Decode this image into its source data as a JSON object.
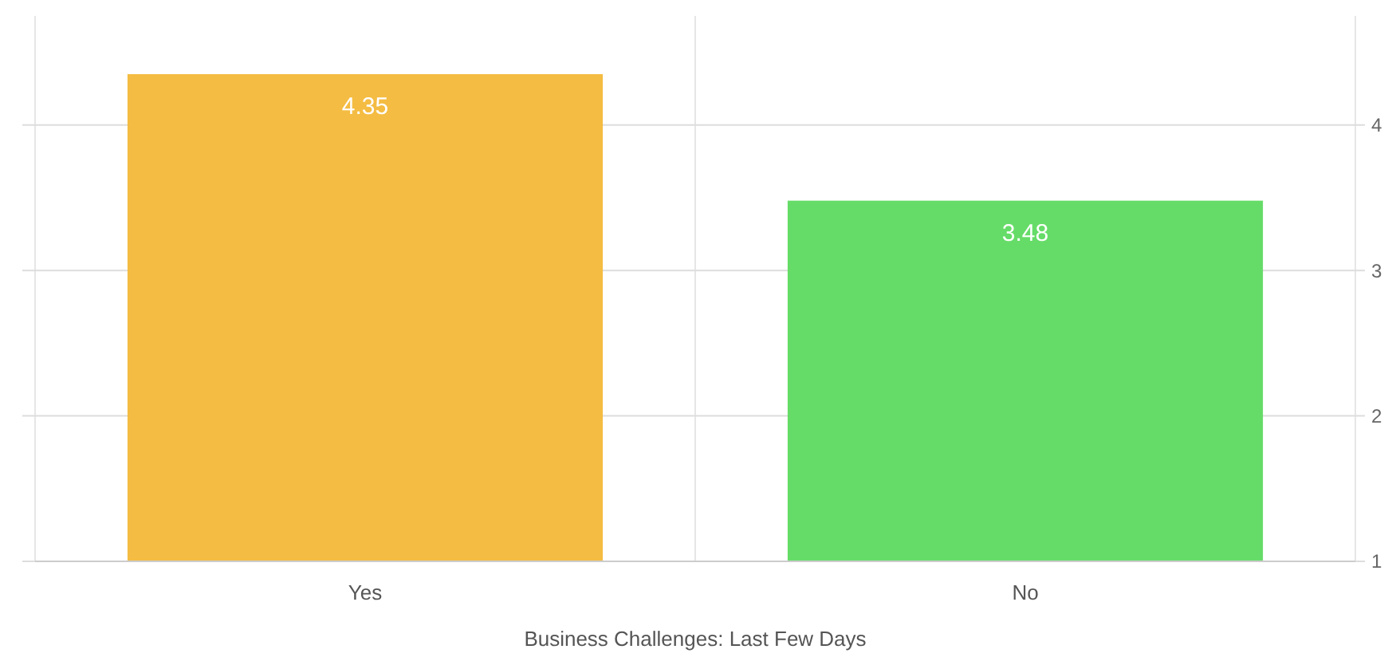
{
  "chart_data": {
    "type": "bar",
    "xlabel": "Business Challenges: Last Few Days",
    "categories": [
      "Yes",
      "No"
    ],
    "values": [
      4.35,
      3.48
    ],
    "colors": [
      "#f4bc42",
      "#66dc68"
    ],
    "data_labels": true,
    "ylim": [
      1,
      4.75
    ],
    "yticks": [
      1,
      2,
      3,
      4
    ],
    "grid": true
  }
}
